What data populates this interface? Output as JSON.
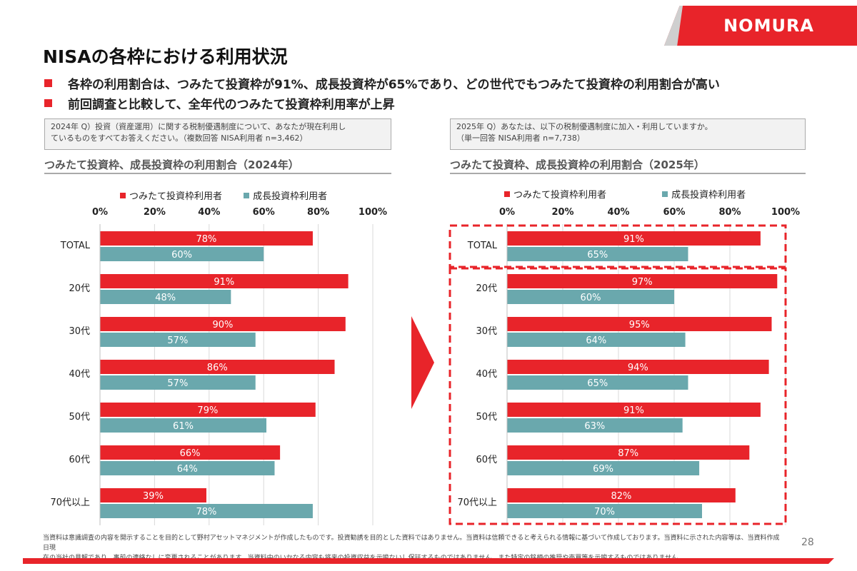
{
  "header": {
    "brand": "NOMURA",
    "title": "NISAの各枠における利用状況",
    "bullets": [
      "各枠の利用割合は、つみたて投資枠が91%、成長投資枠が65%であり、どの世代でもつみたて投資枠の利用割合が高い",
      "前回調査と比較して、全年代のつみたて投資枠利用率が上昇"
    ]
  },
  "left": {
    "question_line1": "2024年 Q）投資（資産運用）に関する税制優遇制度について、あなたが現在利用し",
    "question_line2": "ているものをすべてお答えください。（複数回答 NISA利用者 n=3,462）",
    "subtitle": "つみたて投資枠、成長投資枠の利用割合（2024年）"
  },
  "right": {
    "question_line1": "2025年 Q）あなたは、以下の税制優遇制度に加入・利用していますか。",
    "question_line2": "（単一回答 NISA利用者 n=7,738）",
    "subtitle": "つみたて投資枠、成長投資枠の利用割合（2025年）"
  },
  "colors": {
    "tsumitate": "#e8242a",
    "seicho": "#6aa8ad",
    "accent": "#e8242a"
  },
  "chart_data": [
    {
      "type": "bar",
      "orientation": "horizontal",
      "title": "つみたて投資枠、成長投資枠の利用割合（2024年）",
      "categories": [
        "TOTAL",
        "20代",
        "30代",
        "40代",
        "50代",
        "60代",
        "70代以上"
      ],
      "series": [
        {
          "name": "つみたて投資枠利用者",
          "values": [
            78,
            91,
            90,
            86,
            79,
            66,
            39
          ]
        },
        {
          "name": "成長投資枠利用者",
          "values": [
            60,
            48,
            57,
            57,
            61,
            64,
            78
          ]
        }
      ],
      "x_ticks": [
        "0%",
        "20%",
        "40%",
        "60%",
        "80%",
        "100%"
      ],
      "xlim": [
        0,
        100
      ],
      "unit": "%",
      "grid": true,
      "legend": "top"
    },
    {
      "type": "bar",
      "orientation": "horizontal",
      "title": "つみたて投資枠、成長投資枠の利用割合（2025年）",
      "categories": [
        "TOTAL",
        "20代",
        "30代",
        "40代",
        "50代",
        "60代",
        "70代以上"
      ],
      "series": [
        {
          "name": "つみたて投資枠利用者",
          "values": [
            91,
            97,
            95,
            94,
            91,
            87,
            82
          ]
        },
        {
          "name": "成長投資枠利用者",
          "values": [
            65,
            60,
            64,
            65,
            63,
            69,
            70
          ]
        }
      ],
      "x_ticks": [
        "0%",
        "20%",
        "40%",
        "60%",
        "80%",
        "100%"
      ],
      "xlim": [
        0,
        100
      ],
      "unit": "%",
      "grid": true,
      "legend": "top"
    }
  ],
  "footer": {
    "disclaimer_line1": "当資料は意識調査の内容を開示することを目的として野村アセットマネジメントが作成したものです。投資勧誘を目的とした資料ではありません。当資料は信頼できると考えられる情報に基づいて作成しております。当資料に示された内容等は、当資料作成日現",
    "disclaimer_line2": "在の当社の見解であり、事前の連絡なしに変更されることがあります。当資料中のいかなる内容も将来の投資収益を示唆ないし保証するものではありません。また特定の銘柄の推奨や売買等を示唆するものではありません。",
    "page_number": "28"
  }
}
